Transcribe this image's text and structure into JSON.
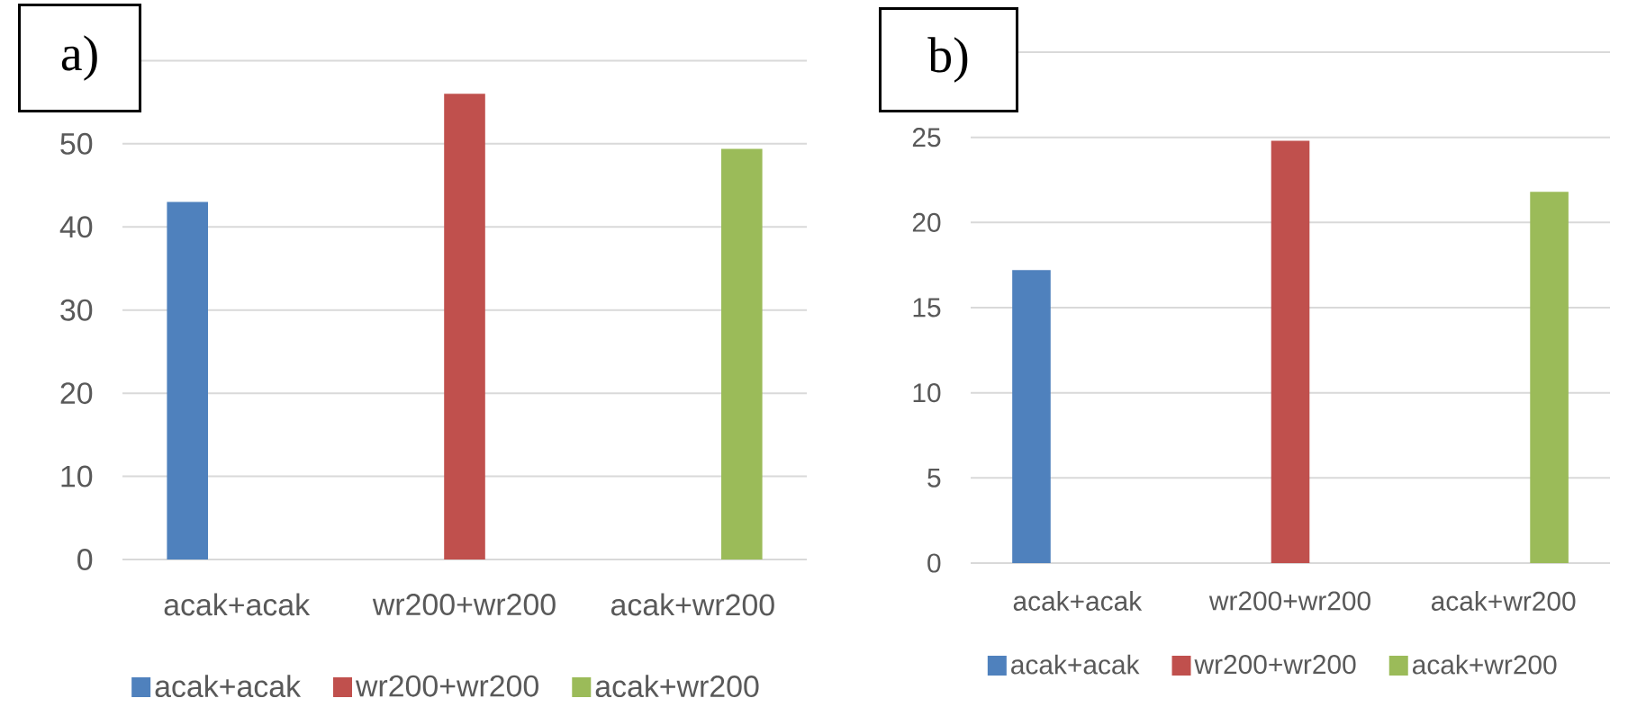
{
  "chart_data": [
    {
      "type": "bar",
      "title": "a)",
      "categories": [
        "acak+acak",
        "wr200+wr200",
        "acak+wr200"
      ],
      "series": [
        {
          "name": "acak+acak",
          "color": "#4f81bd",
          "values": [
            43,
            null,
            null
          ]
        },
        {
          "name": "wr200+wr200",
          "color": "#c0504d",
          "values": [
            null,
            56,
            null
          ]
        },
        {
          "name": "acak+wr200",
          "color": "#9bbb59",
          "values": [
            null,
            null,
            49.4
          ]
        }
      ],
      "ylim": [
        0,
        60
      ],
      "yticks": [
        0,
        10,
        20,
        30,
        40,
        50,
        {
          "value": 60,
          "label": null
        }
      ],
      "grid": "y",
      "legend": "bottom"
    },
    {
      "type": "bar",
      "title": "b)",
      "categories": [
        "acak+acak",
        "wr200+wr200",
        "acak+wr200"
      ],
      "series": [
        {
          "name": "acak+acak",
          "color": "#4f81bd",
          "values": [
            17.2,
            null,
            null
          ]
        },
        {
          "name": "wr200+wr200",
          "color": "#c0504d",
          "values": [
            null,
            24.8,
            null
          ]
        },
        {
          "name": "acak+wr200",
          "color": "#9bbb59",
          "values": [
            null,
            null,
            21.8
          ]
        }
      ],
      "ylim": [
        0,
        30
      ],
      "yticks": [
        0,
        5,
        10,
        15,
        20,
        25,
        {
          "value": 30,
          "label": null
        }
      ],
      "grid": "y",
      "legend": "bottom"
    }
  ]
}
